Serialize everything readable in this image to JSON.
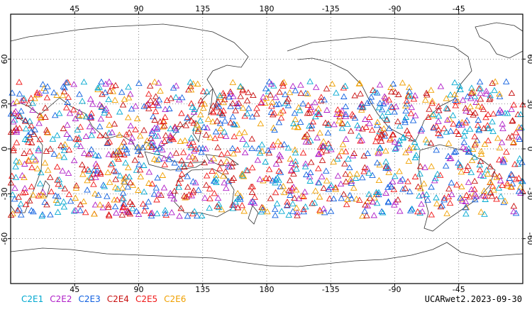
{
  "map": {
    "projection": "cylindrical-equidistant",
    "center_longitude": 180,
    "longitude_range": [
      0,
      360
    ],
    "latitude_range": [
      -90,
      90
    ],
    "gridlines": "dotted",
    "x_tick_labels": [
      "45",
      "90",
      "135",
      "180",
      "-135",
      "-90",
      "-45"
    ],
    "x_tick_longitudes": [
      45,
      90,
      135,
      180,
      225,
      270,
      315
    ],
    "y_tick_labels": [
      "60",
      "30",
      "0",
      "-30",
      "-60"
    ],
    "y_tick_latitudes": [
      60,
      30,
      0,
      -30,
      -60
    ],
    "marker_shape": "triangle-outline",
    "observation_latitude_band": [
      -45,
      45
    ]
  },
  "legend": {
    "items": [
      {
        "label": "C2E1",
        "color": "#00a8d0"
      },
      {
        "label": "C2E2",
        "color": "#b020c8"
      },
      {
        "label": "C2E3",
        "color": "#1060e0"
      },
      {
        "label": "C2E4",
        "color": "#c81010"
      },
      {
        "label": "C2E5",
        "color": "#f01818"
      },
      {
        "label": "C2E6",
        "color": "#f0a000"
      }
    ]
  },
  "product_label": "UCARwet2.2023-09-30"
}
